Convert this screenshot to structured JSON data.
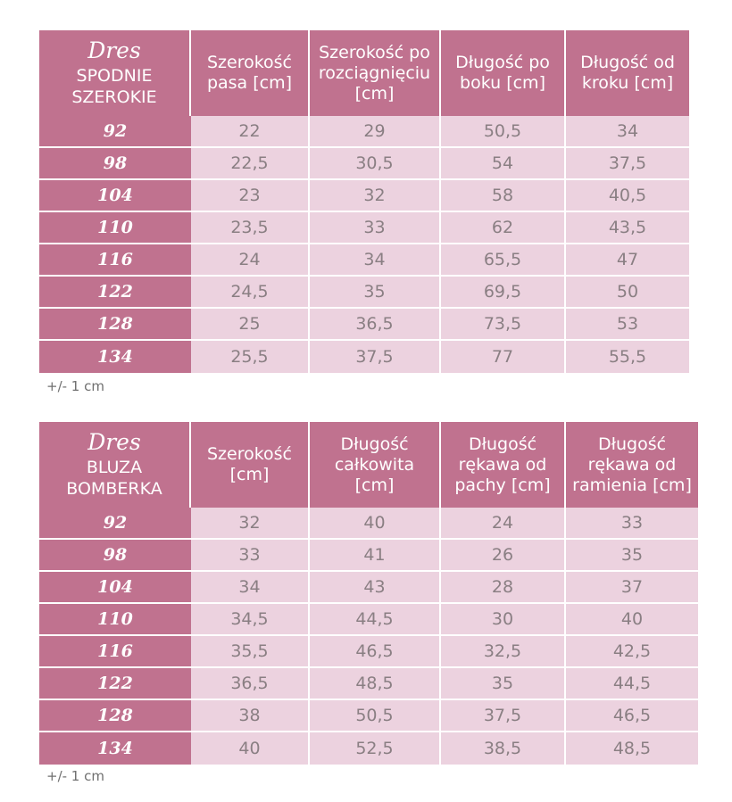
{
  "tables": [
    {
      "corner": {
        "script": "Dres",
        "line1": "SPODNIE",
        "line2": "SZEROKIE"
      },
      "headers": [
        [
          "Szerokość",
          "pasa [cm]"
        ],
        [
          "Szerokość po",
          "rozciągnięciu",
          "[cm]"
        ],
        [
          "Długość po",
          "boku [cm]"
        ],
        [
          "Długość od",
          "kroku [cm]"
        ]
      ],
      "rows": [
        {
          "size": "92",
          "values": [
            "22",
            "29",
            "50,5",
            "34"
          ]
        },
        {
          "size": "98",
          "values": [
            "22,5",
            "30,5",
            "54",
            "37,5"
          ]
        },
        {
          "size": "104",
          "values": [
            "23",
            "32",
            "58",
            "40,5"
          ]
        },
        {
          "size": "110",
          "values": [
            "23,5",
            "33",
            "62",
            "43,5"
          ]
        },
        {
          "size": "116",
          "values": [
            "24",
            "34",
            "65,5",
            "47"
          ]
        },
        {
          "size": "122",
          "values": [
            "24,5",
            "35",
            "69,5",
            "50"
          ]
        },
        {
          "size": "128",
          "values": [
            "25",
            "36,5",
            "73,5",
            "53"
          ]
        },
        {
          "size": "134",
          "values": [
            "25,5",
            "37,5",
            "77",
            "55,5"
          ]
        }
      ],
      "note": "+/- 1 cm"
    },
    {
      "corner": {
        "script": "Dres",
        "line1": "BLUZA",
        "line2": "BOMBERKA"
      },
      "headers": [
        [
          "Szerokość",
          "[cm]"
        ],
        [
          "Długość",
          "całkowita",
          "[cm]"
        ],
        [
          "Długość",
          "rękawa od",
          "pachy  [cm]"
        ],
        [
          "Długość",
          "rękawa od",
          "ramienia [cm]"
        ]
      ],
      "rows": [
        {
          "size": "92",
          "values": [
            "32",
            "40",
            "24",
            "33"
          ]
        },
        {
          "size": "98",
          "values": [
            "33",
            "41",
            "26",
            "35"
          ]
        },
        {
          "size": "104",
          "values": [
            "34",
            "43",
            "28",
            "37"
          ]
        },
        {
          "size": "110",
          "values": [
            "34,5",
            "44,5",
            "30",
            "40"
          ]
        },
        {
          "size": "116",
          "values": [
            "35,5",
            "46,5",
            "32,5",
            "42,5"
          ]
        },
        {
          "size": "122",
          "values": [
            "36,5",
            "48,5",
            "35",
            "44,5"
          ]
        },
        {
          "size": "128",
          "values": [
            "38",
            "50,5",
            "37,5",
            "46,5"
          ]
        },
        {
          "size": "134",
          "values": [
            "40",
            "52,5",
            "38,5",
            "48,5"
          ]
        }
      ],
      "note": "+/- 1 cm"
    }
  ],
  "colors": {
    "header": "#c0728f",
    "cell": "#ecd2df",
    "text": "#8a7f83"
  }
}
